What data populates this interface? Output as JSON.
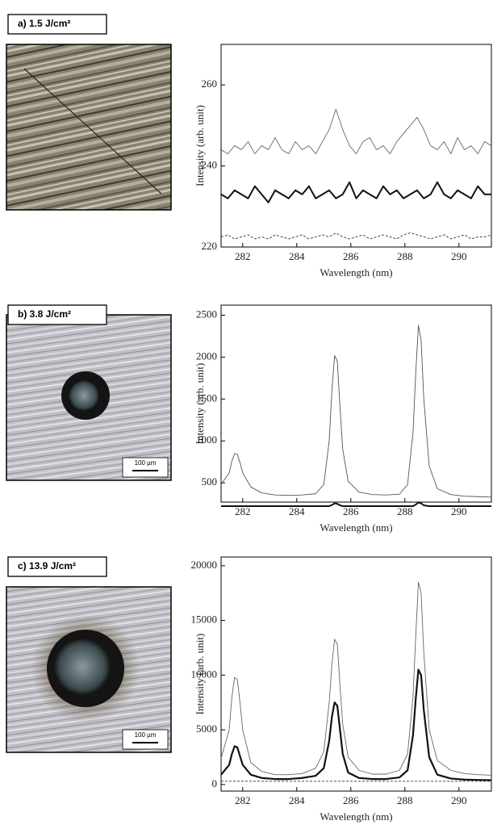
{
  "chart_data": [
    {
      "type": "line",
      "panel_label": "a) 1.5 J/cm²",
      "x_label": "Wavelength (nm)",
      "y_label": "Intensity (arb. unit)",
      "xlim": [
        281.2,
        291.2
      ],
      "ylim": [
        220,
        270
      ],
      "xticks": [
        282,
        284,
        286,
        288,
        290
      ],
      "yticks": [
        220,
        240,
        260
      ],
      "x": [
        281.2,
        281.45,
        281.7,
        281.95,
        282.2,
        282.45,
        282.7,
        282.95,
        283.2,
        283.45,
        283.7,
        283.95,
        284.2,
        284.45,
        284.7,
        284.95,
        285.2,
        285.45,
        285.7,
        285.95,
        286.2,
        286.45,
        286.7,
        286.95,
        287.2,
        287.45,
        287.7,
        287.95,
        288.2,
        288.45,
        288.7,
        288.95,
        289.2,
        289.45,
        289.7,
        289.95,
        290.2,
        290.45,
        290.7,
        290.95,
        291.2
      ],
      "series": [
        {
          "color": "#555555",
          "line_width": 0.8,
          "dashed": false,
          "values": [
            244,
            243,
            245,
            244,
            246,
            243,
            245,
            244,
            247,
            244,
            243,
            246,
            244,
            245,
            243,
            246,
            249,
            254,
            249,
            245,
            243,
            246,
            247,
            244,
            245,
            243,
            246,
            248,
            250,
            252,
            249,
            245,
            244,
            246,
            243,
            247,
            244,
            245,
            243,
            246,
            245
          ]
        },
        {
          "color": "#111111",
          "line_width": 2,
          "dashed": false,
          "values": [
            233,
            232,
            234,
            233,
            232,
            235,
            233,
            231,
            234,
            233,
            232,
            234,
            233,
            235,
            232,
            233,
            234,
            232,
            233,
            236,
            232,
            234,
            233,
            232,
            235,
            233,
            234,
            232,
            233,
            234,
            232,
            233,
            236,
            233,
            232,
            234,
            233,
            232,
            235,
            233,
            233
          ]
        },
        {
          "color": "#333333",
          "line_width": 0.9,
          "dashed": true,
          "values": [
            222.5,
            223,
            222,
            222.5,
            223,
            222,
            222.5,
            222,
            223,
            222.5,
            222,
            222.5,
            223,
            222,
            222.5,
            223,
            222.5,
            223.5,
            222.5,
            222,
            222.5,
            223,
            222,
            222.5,
            223,
            222.5,
            222,
            223,
            223.5,
            223,
            222.5,
            222,
            222.5,
            223,
            222,
            222.5,
            223,
            222,
            222.5,
            222.5,
            223
          ]
        }
      ]
    },
    {
      "type": "line",
      "panel_label": "b) 3.8 J/cm²",
      "scale_bar_label": "100 µm",
      "x_label": "Wavelength (nm)",
      "y_label": "Intensity (arb. unit)",
      "xlim": [
        281.2,
        291.2
      ],
      "ylim": [
        270,
        2620
      ],
      "xticks": [
        282,
        284,
        286,
        288,
        290
      ],
      "yticks": [
        500,
        1000,
        1500,
        2000,
        2500
      ],
      "x": [
        281.2,
        281.5,
        281.6,
        281.7,
        281.8,
        281.9,
        282.0,
        282.3,
        282.7,
        283.2,
        283.7,
        284.2,
        284.7,
        285.0,
        285.2,
        285.3,
        285.4,
        285.5,
        285.6,
        285.7,
        285.9,
        286.3,
        286.8,
        287.3,
        287.8,
        288.1,
        288.3,
        288.4,
        288.5,
        288.6,
        288.7,
        288.9,
        289.2,
        289.7,
        290.2,
        290.7,
        291.2
      ],
      "series": [
        {
          "color": "#555555",
          "line_width": 0.9,
          "dashed": false,
          "values": [
            480,
            620,
            760,
            850,
            840,
            740,
            620,
            450,
            380,
            355,
            350,
            355,
            370,
            480,
            1000,
            1600,
            2020,
            1950,
            1400,
            900,
            520,
            390,
            360,
            355,
            365,
            480,
            1100,
            1800,
            2380,
            2200,
            1500,
            700,
            430,
            360,
            340,
            335,
            330
          ]
        },
        {
          "color": "#111111",
          "line_width": 2,
          "dashed": false,
          "values": [
            222,
            222,
            222,
            222,
            222,
            222,
            222,
            222,
            222,
            222,
            222,
            222,
            222,
            222,
            222,
            235,
            255,
            250,
            232,
            222,
            222,
            222,
            222,
            222,
            222,
            222,
            222,
            240,
            265,
            255,
            232,
            222,
            222,
            222,
            222,
            222,
            222
          ]
        }
      ]
    },
    {
      "type": "line",
      "panel_label": "c) 13.9 J/cm²",
      "scale_bar_label": "100 µm",
      "x_label": "Wavelength (nm)",
      "y_label": "Intensity (arb. unit)",
      "xlim": [
        281.2,
        291.2
      ],
      "ylim": [
        -600,
        20800
      ],
      "xticks": [
        282,
        284,
        286,
        288,
        290
      ],
      "yticks": [
        0,
        5000,
        10000,
        15000,
        20000
      ],
      "x": [
        281.2,
        281.5,
        281.6,
        281.7,
        281.8,
        281.9,
        282.0,
        282.3,
        282.7,
        283.2,
        283.7,
        284.2,
        284.7,
        285.0,
        285.2,
        285.3,
        285.4,
        285.5,
        285.6,
        285.7,
        285.9,
        286.3,
        286.8,
        287.3,
        287.8,
        288.1,
        288.3,
        288.4,
        288.5,
        288.6,
        288.7,
        288.9,
        289.2,
        289.7,
        290.2,
        290.7,
        291.2
      ],
      "series": [
        {
          "color": "#666666",
          "line_width": 0.9,
          "dashed": false,
          "values": [
            2400,
            5000,
            8000,
            9800,
            9600,
            7500,
            5000,
            2000,
            1200,
            900,
            900,
            1000,
            1500,
            3000,
            7500,
            11000,
            13300,
            12800,
            9000,
            5500,
            2500,
            1300,
            950,
            950,
            1300,
            2800,
            8000,
            13500,
            18500,
            17500,
            12000,
            5000,
            2200,
            1300,
            1000,
            900,
            850
          ]
        },
        {
          "color": "#111111",
          "line_width": 2.2,
          "dashed": false,
          "values": [
            900,
            1800,
            2800,
            3500,
            3400,
            2600,
            1800,
            900,
            600,
            500,
            500,
            600,
            800,
            1500,
            4000,
            6200,
            7500,
            7200,
            5000,
            2800,
            1100,
            600,
            500,
            500,
            650,
            1300,
            4500,
            7800,
            10500,
            10000,
            6800,
            2500,
            900,
            550,
            450,
            420,
            400
          ]
        },
        {
          "color": "#333333",
          "line_width": 0.9,
          "dashed": true,
          "values": [
            300,
            300,
            300,
            300,
            300,
            300,
            300,
            300,
            300,
            300,
            300,
            300,
            300,
            300,
            300,
            300,
            300,
            300,
            300,
            300,
            300,
            300,
            300,
            300,
            300,
            300,
            300,
            300,
            300,
            300,
            300,
            300,
            300,
            300,
            300,
            300,
            300
          ]
        }
      ]
    }
  ]
}
